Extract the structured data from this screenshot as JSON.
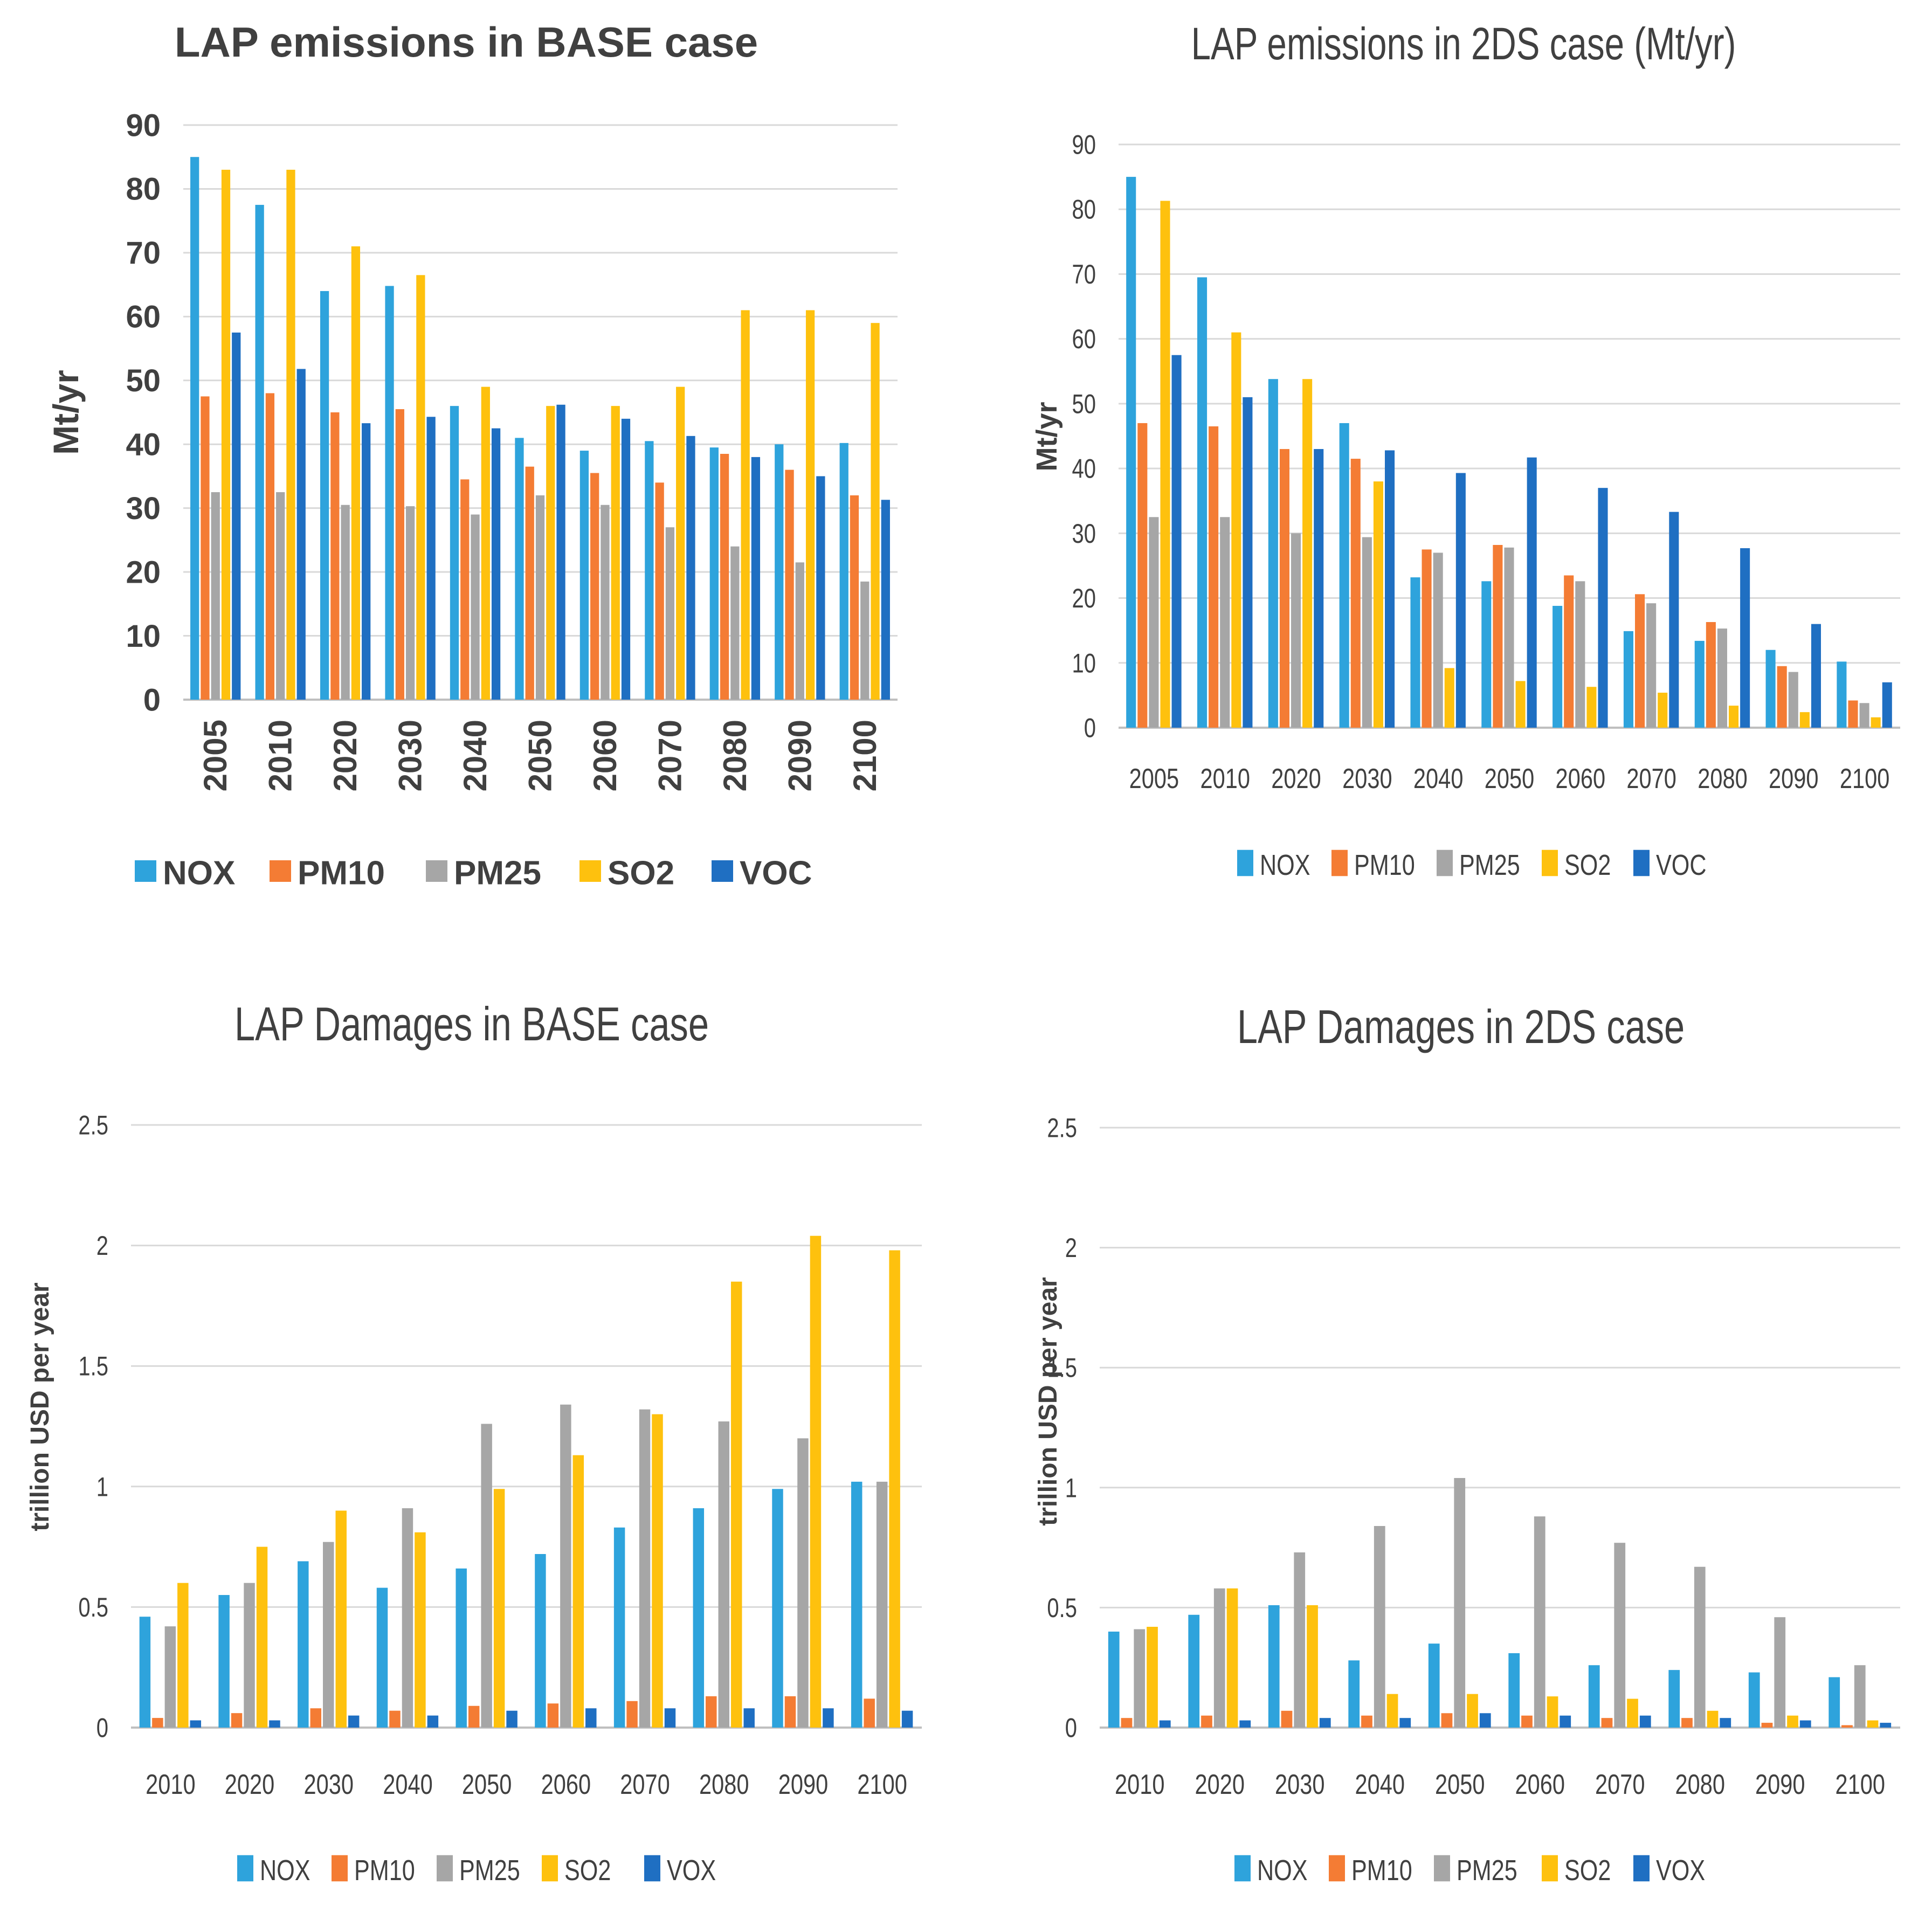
{
  "colors": {
    "NOX": "#2ea3dc",
    "PM10": "#f47c34",
    "PM25": "#a6a6a6",
    "SO2": "#fec10e",
    "VOC": "#1f6fc2",
    "grid": "#d9d9d9",
    "axis": "#bfbfbf",
    "text": "#404040"
  },
  "chart_data": [
    {
      "type": "bar",
      "title": "LAP emissions in BASE case",
      "xlabel": "",
      "ylabel": "Mt/yr",
      "ylim": [
        0,
        90
      ],
      "yticks": [
        "0",
        "10",
        "20",
        "30",
        "40",
        "50",
        "60",
        "70",
        "80",
        "90"
      ],
      "categories": [
        "2005",
        "2010",
        "2020",
        "2030",
        "2040",
        "2050",
        "2060",
        "2070",
        "2080",
        "2090",
        "2100"
      ],
      "legend_position": "bottom",
      "series": [
        {
          "name": "NOX",
          "values": [
            85,
            77.5,
            64,
            64.8,
            46,
            41,
            39,
            40.5,
            39.5,
            40,
            40.2
          ]
        },
        {
          "name": "PM10",
          "values": [
            47.5,
            48,
            45,
            45.5,
            34.5,
            36.5,
            35.5,
            34,
            38.5,
            36,
            32
          ]
        },
        {
          "name": "PM25",
          "values": [
            32.5,
            32.5,
            30.5,
            30.3,
            29,
            32,
            30.5,
            27,
            24,
            21.5,
            18.5
          ]
        },
        {
          "name": "SO2",
          "values": [
            83,
            83,
            71,
            66.5,
            49,
            46,
            46,
            49,
            61,
            61,
            59
          ]
        },
        {
          "name": "VOC",
          "values": [
            57.5,
            51.8,
            43.3,
            44.3,
            42.5,
            46.2,
            44,
            41.3,
            38,
            35,
            31.3
          ]
        }
      ]
    },
    {
      "type": "bar",
      "title": "LAP emissions in 2DS case (Mt/yr)",
      "xlabel": "",
      "ylabel": "Mt/yr",
      "ylim": [
        0,
        90
      ],
      "yticks": [
        "0",
        "10",
        "20",
        "30",
        "40",
        "50",
        "60",
        "70",
        "80",
        "90"
      ],
      "categories": [
        "2005",
        "2010",
        "2020",
        "2030",
        "2040",
        "2050",
        "2060",
        "2070",
        "2080",
        "2090",
        "2100"
      ],
      "legend_position": "bottom",
      "series": [
        {
          "name": "NOX",
          "values": [
            85,
            69.5,
            53.8,
            47,
            23.2,
            22.6,
            18.8,
            14.9,
            13.4,
            12,
            10.2
          ]
        },
        {
          "name": "PM10",
          "values": [
            47,
            46.5,
            43,
            41.5,
            27.5,
            28.2,
            23.5,
            20.6,
            16.3,
            9.5,
            4.2
          ]
        },
        {
          "name": "PM25",
          "values": [
            32.5,
            32.5,
            30,
            29.4,
            27,
            27.8,
            22.6,
            19.2,
            15.3,
            8.6,
            3.8
          ]
        },
        {
          "name": "SO2",
          "values": [
            81.3,
            61,
            53.8,
            38,
            9.2,
            7.2,
            6.3,
            5.4,
            3.4,
            2.4,
            1.6
          ]
        },
        {
          "name": "VOC",
          "values": [
            57.5,
            51,
            43,
            42.8,
            39.3,
            41.7,
            37,
            33.3,
            27.7,
            16,
            7
          ]
        }
      ]
    },
    {
      "type": "bar",
      "title": "LAP Damages in BASE case",
      "xlabel": "",
      "ylabel": "trillion USD per year",
      "ylim": [
        0,
        2.5
      ],
      "yticks": [
        "0",
        "0.5",
        "1",
        "1.5",
        "2",
        "2.5"
      ],
      "categories": [
        "2010",
        "2020",
        "2030",
        "2040",
        "2050",
        "2060",
        "2070",
        "2080",
        "2090",
        "2100"
      ],
      "legend_position": "bottom",
      "series": [
        {
          "name": "NOX",
          "values": [
            0.46,
            0.55,
            0.69,
            0.58,
            0.66,
            0.72,
            0.83,
            0.91,
            0.99,
            1.02
          ]
        },
        {
          "name": "PM10",
          "values": [
            0.04,
            0.06,
            0.08,
            0.07,
            0.09,
            0.1,
            0.11,
            0.13,
            0.13,
            0.12
          ]
        },
        {
          "name": "PM25",
          "values": [
            0.42,
            0.6,
            0.77,
            0.91,
            1.26,
            1.34,
            1.32,
            1.27,
            1.2,
            1.02
          ]
        },
        {
          "name": "SO2",
          "values": [
            0.6,
            0.75,
            0.9,
            0.81,
            0.99,
            1.13,
            1.3,
            1.85,
            2.04,
            1.98
          ]
        },
        {
          "name": "VOX",
          "values": [
            0.03,
            0.03,
            0.05,
            0.05,
            0.07,
            0.08,
            0.08,
            0.08,
            0.08,
            0.07
          ]
        }
      ]
    },
    {
      "type": "bar",
      "title": "LAP Damages in 2DS case",
      "xlabel": "",
      "ylabel": "trillion USD per year",
      "ylim": [
        0,
        2.5
      ],
      "yticks": [
        "0",
        "0.5",
        "1",
        "1.5",
        "2",
        "2.5"
      ],
      "categories": [
        "2010",
        "2020",
        "2030",
        "2040",
        "2050",
        "2060",
        "2070",
        "2080",
        "2090",
        "2100"
      ],
      "legend_position": "bottom",
      "series": [
        {
          "name": "NOX",
          "values": [
            0.4,
            0.47,
            0.51,
            0.28,
            0.35,
            0.31,
            0.26,
            0.24,
            0.23,
            0.21
          ]
        },
        {
          "name": "PM10",
          "values": [
            0.04,
            0.05,
            0.07,
            0.05,
            0.06,
            0.05,
            0.04,
            0.04,
            0.02,
            0.01
          ]
        },
        {
          "name": "PM25",
          "values": [
            0.41,
            0.58,
            0.73,
            0.84,
            1.04,
            0.88,
            0.77,
            0.67,
            0.46,
            0.26
          ]
        },
        {
          "name": "SO2",
          "values": [
            0.42,
            0.58,
            0.51,
            0.14,
            0.14,
            0.13,
            0.12,
            0.07,
            0.05,
            0.03
          ]
        },
        {
          "name": "VOX",
          "values": [
            0.03,
            0.03,
            0.04,
            0.04,
            0.06,
            0.05,
            0.05,
            0.04,
            0.03,
            0.02
          ]
        }
      ]
    }
  ]
}
